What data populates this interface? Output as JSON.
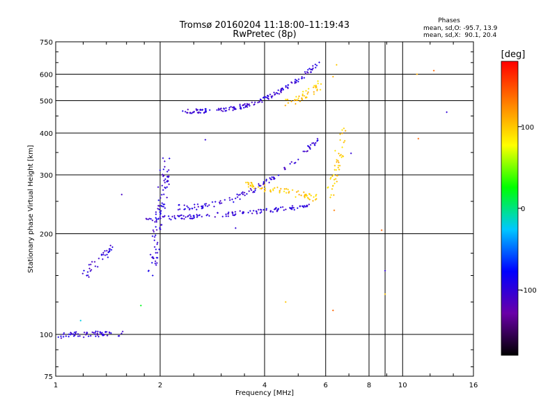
{
  "chart_data": {
    "type": "scatter",
    "title": "Tromsø 20160204 11:18:00–11:19:43",
    "subtitle": "RwPretec (8p)",
    "stats": {
      "heading": "Phases",
      "line1": "mean, sd,O: -95.7, 13.9",
      "line2": "mean, sd,X:  90.1, 20.4"
    },
    "xlabel": "Frequency [MHz]",
    "ylabel": "Stationary phase Virtual Height [km]",
    "x_scale": "log",
    "y_scale": "log",
    "xlim": [
      1,
      16
    ],
    "ylim": [
      75,
      750
    ],
    "x_ticks": [
      1,
      2,
      4,
      6,
      8,
      10,
      16
    ],
    "x_tick_labels": [
      "1",
      "2",
      "4",
      "6",
      "8",
      "10",
      "16"
    ],
    "y_ticks": [
      75,
      100,
      200,
      300,
      400,
      500,
      600,
      750
    ],
    "y_tick_labels": [
      "75",
      "100",
      "200",
      "300",
      "400",
      "500",
      "600",
      "750"
    ],
    "grid": true,
    "colorbar": {
      "label": "[deg]",
      "range": [
        -180,
        180
      ],
      "ticks": [
        100,
        0,
        -100
      ],
      "tick_labels": [
        "100",
        "0",
        "-100"
      ],
      "colors": [
        "#000000",
        "#6a00a8",
        "#0000ff",
        "#00c8ff",
        "#00ff00",
        "#ffff00",
        "#ff8000",
        "#ff0000"
      ]
    },
    "traces": [
      {
        "name": "O-trace E layer",
        "phase": -100,
        "x0": 1.0,
        "x1": 1.58,
        "y0": 97,
        "y1": 101,
        "shape": 0.3,
        "n": 60,
        "spread": 0.02
      },
      {
        "name": "O-trace F1 lower",
        "phase": -100,
        "x0": 1.82,
        "x1": 5.4,
        "y0": 222,
        "y1": 242,
        "shape": 1.5,
        "n": 130,
        "spread": 0.015
      },
      {
        "name": "O-trace F1 upper",
        "phase": -100,
        "x0": 2.25,
        "x1": 5.8,
        "y0": 240,
        "y1": 390,
        "shape": 2.5,
        "n": 110,
        "spread": 0.02
      },
      {
        "name": "O-trace F2",
        "phase": -100,
        "x0": 2.3,
        "x1": 5.75,
        "y0": 465,
        "y1": 650,
        "shape": 3,
        "n": 160,
        "spread": 0.015
      },
      {
        "name": "O-trace near 2 MHz",
        "phase": -100,
        "x0": 1.9,
        "x1": 2.1,
        "y0": 150,
        "y1": 330,
        "shape": 1,
        "n": 90,
        "spread": 0.06
      },
      {
        "name": "Es blob",
        "phase": -100,
        "x0": 1.2,
        "x1": 1.45,
        "y0": 148,
        "y1": 182,
        "shape": 1,
        "n": 35,
        "spread": 0.03
      },
      {
        "name": "X-trace F1",
        "phase": 100,
        "x0": 3.5,
        "x1": 5.7,
        "y0": 280,
        "y1": 255,
        "shape": 1,
        "n": 70,
        "spread": 0.025
      },
      {
        "name": "X-trace F2",
        "phase": 100,
        "x0": 4.6,
        "x1": 5.8,
        "y0": 490,
        "y1": 560,
        "shape": 1.5,
        "n": 45,
        "spread": 0.03
      },
      {
        "name": "X-trace cusp",
        "phase": 100,
        "x0": 6.2,
        "x1": 6.8,
        "y0": 260,
        "y1": 400,
        "shape": 1,
        "n": 45,
        "spread": 0.05
      }
    ],
    "isolated_points": [
      {
        "x": 6.45,
        "y": 640,
        "phase": 100
      },
      {
        "x": 6.3,
        "y": 590,
        "phase": 110
      },
      {
        "x": 6.35,
        "y": 235,
        "phase": 130
      },
      {
        "x": 6.3,
        "y": 118,
        "phase": 140
      },
      {
        "x": 8.7,
        "y": 205,
        "phase": 140
      },
      {
        "x": 8.9,
        "y": 155,
        "phase": -100
      },
      {
        "x": 8.9,
        "y": 132,
        "phase": 100
      },
      {
        "x": 11.0,
        "y": 600,
        "phase": 110
      },
      {
        "x": 11.1,
        "y": 385,
        "phase": 140
      },
      {
        "x": 12.3,
        "y": 615,
        "phase": 140
      },
      {
        "x": 13.4,
        "y": 462,
        "phase": -100
      },
      {
        "x": 7.1,
        "y": 348,
        "phase": -100
      },
      {
        "x": 4.6,
        "y": 125,
        "phase": 100
      },
      {
        "x": 1.55,
        "y": 262,
        "phase": -110
      },
      {
        "x": 1.76,
        "y": 122,
        "phase": 20
      },
      {
        "x": 2.7,
        "y": 382,
        "phase": -100
      },
      {
        "x": 3.3,
        "y": 208,
        "phase": -100
      },
      {
        "x": 1.18,
        "y": 110,
        "phase": -20
      }
    ]
  }
}
